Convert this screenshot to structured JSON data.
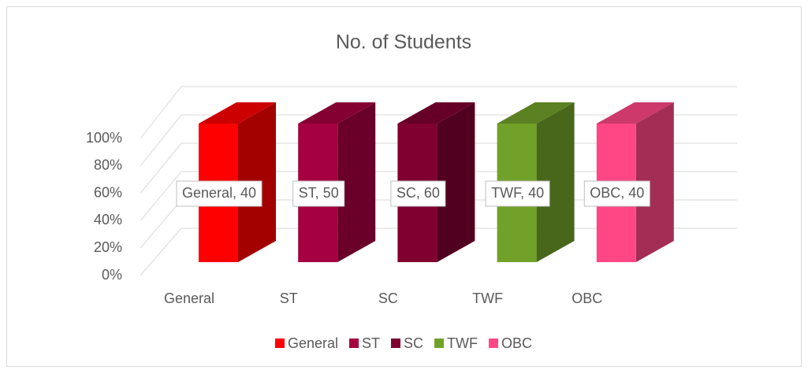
{
  "chart_data": {
    "type": "bar",
    "stacking": "percent",
    "title": "No. of Students",
    "categories": [
      "General",
      "ST",
      "SC",
      "TWF",
      "OBC"
    ],
    "series": [
      {
        "name": "General",
        "color": "#ff0000",
        "values": [
          40,
          null,
          null,
          null,
          null
        ],
        "value_labels": [
          "General, 40",
          null,
          null,
          null,
          null
        ]
      },
      {
        "name": "ST",
        "color": "#a50040",
        "values": [
          null,
          50,
          null,
          null,
          null
        ],
        "value_labels": [
          null,
          "ST, 50",
          null,
          null,
          null
        ]
      },
      {
        "name": "SC",
        "color": "#800030",
        "values": [
          null,
          null,
          60,
          null,
          null
        ],
        "value_labels": [
          null,
          null,
          "SC, 60",
          null,
          null
        ]
      },
      {
        "name": "TWF",
        "color": "#72a12a",
        "values": [
          null,
          null,
          null,
          40,
          null
        ],
        "value_labels": [
          null,
          null,
          null,
          "TWF, 40",
          null
        ]
      },
      {
        "name": "OBC",
        "color": "#ff4785",
        "values": [
          null,
          null,
          null,
          null,
          40
        ],
        "value_labels": [
          null,
          null,
          null,
          null,
          "OBC, 40"
        ]
      }
    ],
    "ylim": [
      0,
      100
    ],
    "yticks": [
      {
        "value": 0,
        "label": "0%"
      },
      {
        "value": 20,
        "label": "20%"
      },
      {
        "value": 40,
        "label": "40%"
      },
      {
        "value": 60,
        "label": "60%"
      },
      {
        "value": 80,
        "label": "80%"
      },
      {
        "value": 100,
        "label": "100%"
      }
    ],
    "grid": true,
    "legend": "bottom"
  }
}
